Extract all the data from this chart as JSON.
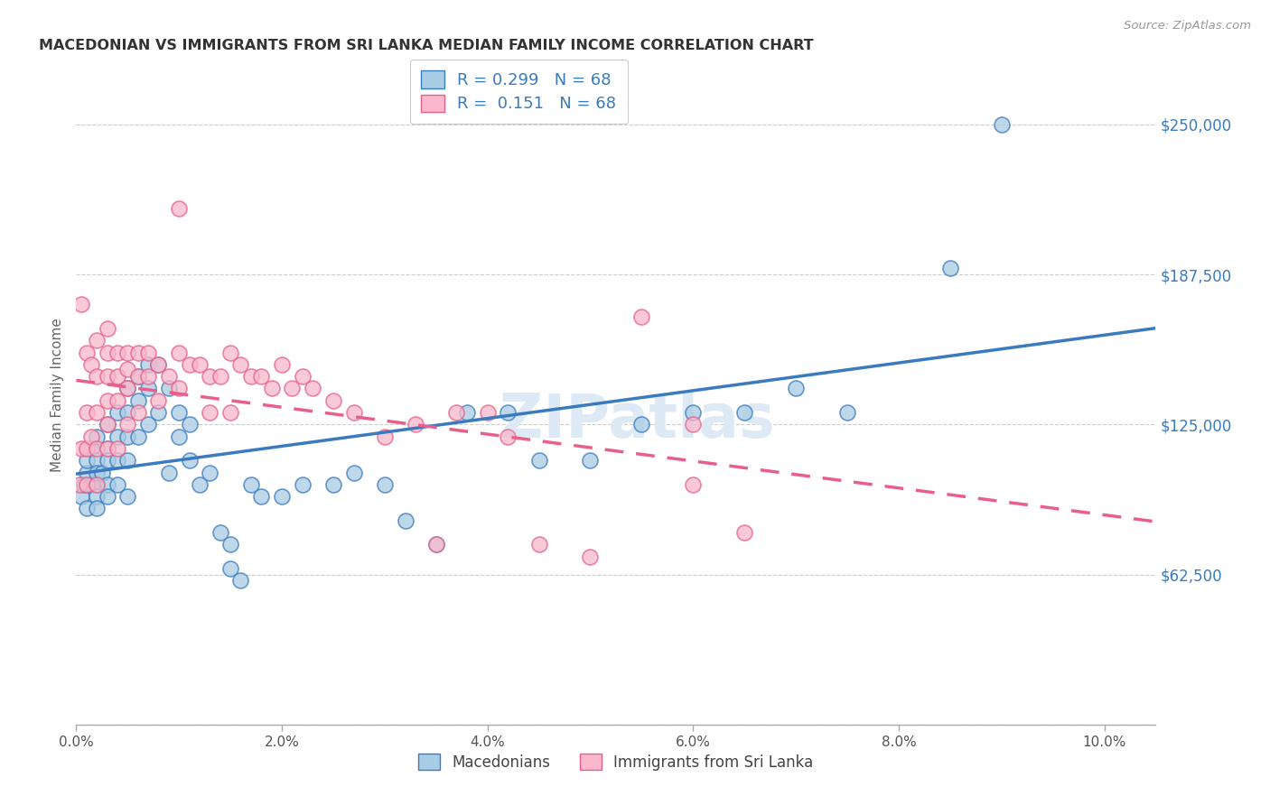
{
  "title": "MACEDONIAN VS IMMIGRANTS FROM SRI LANKA MEDIAN FAMILY INCOME CORRELATION CHART",
  "source": "Source: ZipAtlas.com",
  "xlabel_ticks": [
    "0.0%",
    "2.0%",
    "4.0%",
    "6.0%",
    "8.0%",
    "10.0%"
  ],
  "xlabel_vals": [
    0.0,
    0.02,
    0.04,
    0.06,
    0.08,
    0.1
  ],
  "ylabel": "Median Family Income",
  "xlim": [
    0.0,
    0.105
  ],
  "ylim": [
    0,
    275000
  ],
  "blue_fill": "#a8cce4",
  "pink_fill": "#f9b8cb",
  "blue_line_color": "#3a7bbf",
  "pink_line_color": "#e8608a",
  "R_blue": 0.299,
  "R_pink": 0.151,
  "N": 68,
  "legend_label_blue": "Macedonians",
  "legend_label_pink": "Immigrants from Sri Lanka",
  "blue_scatter_x": [
    0.0005,
    0.0008,
    0.001,
    0.001,
    0.001,
    0.0015,
    0.0015,
    0.002,
    0.002,
    0.002,
    0.002,
    0.002,
    0.002,
    0.0025,
    0.003,
    0.003,
    0.003,
    0.003,
    0.003,
    0.004,
    0.004,
    0.004,
    0.004,
    0.005,
    0.005,
    0.005,
    0.005,
    0.005,
    0.006,
    0.006,
    0.006,
    0.007,
    0.007,
    0.007,
    0.008,
    0.008,
    0.009,
    0.009,
    0.01,
    0.01,
    0.011,
    0.011,
    0.012,
    0.013,
    0.014,
    0.015,
    0.015,
    0.016,
    0.017,
    0.018,
    0.02,
    0.022,
    0.025,
    0.027,
    0.03,
    0.032,
    0.035,
    0.038,
    0.042,
    0.045,
    0.05,
    0.055,
    0.06,
    0.065,
    0.07,
    0.075,
    0.085,
    0.09
  ],
  "blue_scatter_y": [
    95000,
    100000,
    105000,
    110000,
    90000,
    115000,
    100000,
    120000,
    110000,
    100000,
    95000,
    105000,
    90000,
    105000,
    125000,
    115000,
    110000,
    100000,
    95000,
    130000,
    120000,
    110000,
    100000,
    140000,
    130000,
    120000,
    110000,
    95000,
    145000,
    135000,
    120000,
    150000,
    140000,
    125000,
    150000,
    130000,
    140000,
    105000,
    130000,
    120000,
    125000,
    110000,
    100000,
    105000,
    80000,
    75000,
    65000,
    60000,
    100000,
    95000,
    95000,
    100000,
    100000,
    105000,
    100000,
    85000,
    75000,
    130000,
    130000,
    110000,
    110000,
    125000,
    130000,
    130000,
    140000,
    130000,
    190000,
    250000
  ],
  "pink_scatter_x": [
    0.0003,
    0.0005,
    0.0005,
    0.001,
    0.001,
    0.001,
    0.001,
    0.0015,
    0.0015,
    0.002,
    0.002,
    0.002,
    0.002,
    0.002,
    0.003,
    0.003,
    0.003,
    0.003,
    0.003,
    0.003,
    0.004,
    0.004,
    0.004,
    0.004,
    0.005,
    0.005,
    0.005,
    0.005,
    0.006,
    0.006,
    0.006,
    0.007,
    0.007,
    0.008,
    0.008,
    0.009,
    0.01,
    0.01,
    0.011,
    0.012,
    0.013,
    0.013,
    0.014,
    0.015,
    0.015,
    0.016,
    0.017,
    0.018,
    0.019,
    0.02,
    0.021,
    0.022,
    0.023,
    0.025,
    0.027,
    0.03,
    0.033,
    0.035,
    0.037,
    0.04,
    0.042,
    0.045,
    0.05,
    0.055,
    0.06,
    0.06,
    0.065,
    0.01
  ],
  "pink_scatter_y": [
    100000,
    115000,
    175000,
    155000,
    130000,
    115000,
    100000,
    150000,
    120000,
    160000,
    145000,
    130000,
    115000,
    100000,
    165000,
    155000,
    145000,
    135000,
    125000,
    115000,
    155000,
    145000,
    135000,
    115000,
    155000,
    148000,
    140000,
    125000,
    155000,
    145000,
    130000,
    155000,
    145000,
    150000,
    135000,
    145000,
    155000,
    140000,
    150000,
    150000,
    145000,
    130000,
    145000,
    155000,
    130000,
    150000,
    145000,
    145000,
    140000,
    150000,
    140000,
    145000,
    140000,
    135000,
    130000,
    120000,
    125000,
    75000,
    130000,
    130000,
    120000,
    75000,
    70000,
    170000,
    100000,
    125000,
    80000,
    215000
  ]
}
